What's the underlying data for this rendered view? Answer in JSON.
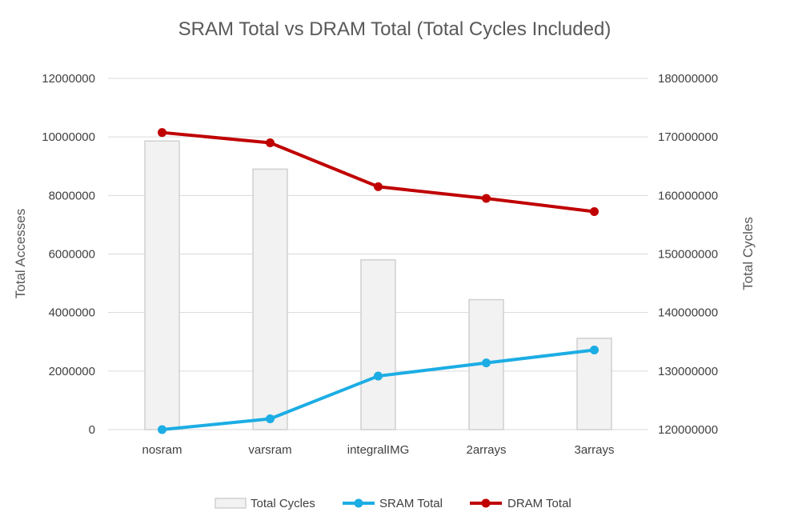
{
  "chart_data": {
    "type": "bar",
    "title": "SRAM Total vs DRAM Total (Total Cycles Included)",
    "categories": [
      "nosram",
      "varsram",
      "integralIMG",
      "2arrays",
      "3arrays"
    ],
    "ylabel_left": "Total Accesses",
    "ylabel_right": "Total Cycles",
    "ylim_left": [
      0,
      12000000
    ],
    "ylim_right": [
      120000000,
      180000000
    ],
    "yticks_left": [
      "0",
      "2000000",
      "4000000",
      "6000000",
      "8000000",
      "10000000",
      "12000000"
    ],
    "yticks_right": [
      "120000000",
      "130000000",
      "140000000",
      "150000000",
      "160000000",
      "170000000",
      "180000000"
    ],
    "grid": true,
    "legend_position": "bottom",
    "series": [
      {
        "name": "Total Cycles",
        "kind": "bar",
        "axis": "right",
        "color": "#f2f2f2",
        "values": [
          169300000,
          164500000,
          149000000,
          142200000,
          135600000
        ]
      },
      {
        "name": "SRAM Total",
        "kind": "line",
        "axis": "left",
        "color": "#1cade4",
        "values": [
          0,
          370000,
          1830000,
          2280000,
          2720000
        ]
      },
      {
        "name": "DRAM Total",
        "kind": "line",
        "axis": "left",
        "color": "#c00000",
        "values": [
          10150000,
          9800000,
          8300000,
          7900000,
          7450000
        ]
      }
    ]
  }
}
